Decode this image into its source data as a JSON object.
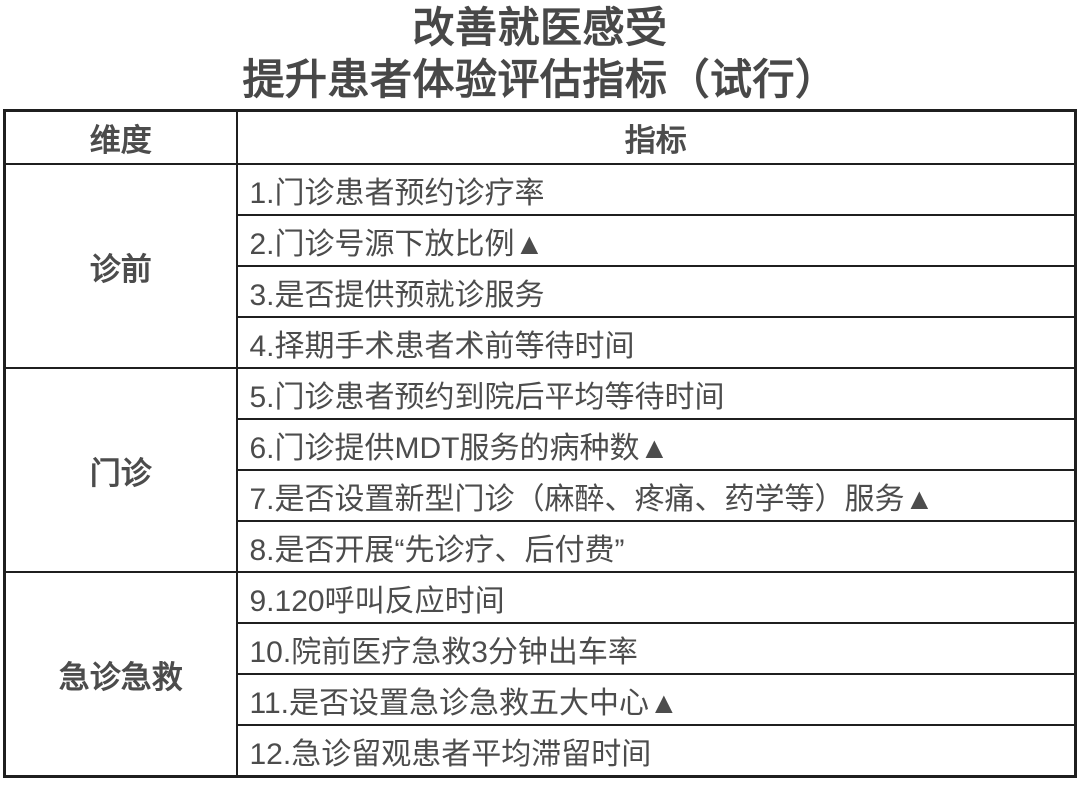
{
  "title": {
    "line1": "改善就医感受",
    "line2": "提升患者体验评估指标（试行）"
  },
  "table": {
    "headers": {
      "dimension": "维度",
      "indicator": "指标"
    },
    "groups": [
      {
        "dimension": "诊前",
        "indicators": [
          "1.门诊患者预约诊疗率",
          "2.门诊号源下放比例▲",
          "3.是否提供预就诊服务",
          "4.择期手术患者术前等待时间"
        ]
      },
      {
        "dimension": "门诊",
        "indicators": [
          "5.门诊患者预约到院后平均等待时间",
          "6.门诊提供MDT服务的病种数▲",
          "7.是否设置新型门诊（麻醉、疼痛、药学等）服务▲",
          "8.是否开展“先诊疗、后付费”"
        ]
      },
      {
        "dimension": "急诊急救",
        "indicators": [
          "9.120呼叫反应时间",
          "10.院前医疗急救3分钟出车率",
          "11.是否设置急诊急救五大中心▲",
          "12.急诊留观患者平均滞留时间"
        ]
      }
    ]
  },
  "colors": {
    "text": "#4c4c4c",
    "border": "#1f1f1f",
    "background": "#ffffff"
  }
}
